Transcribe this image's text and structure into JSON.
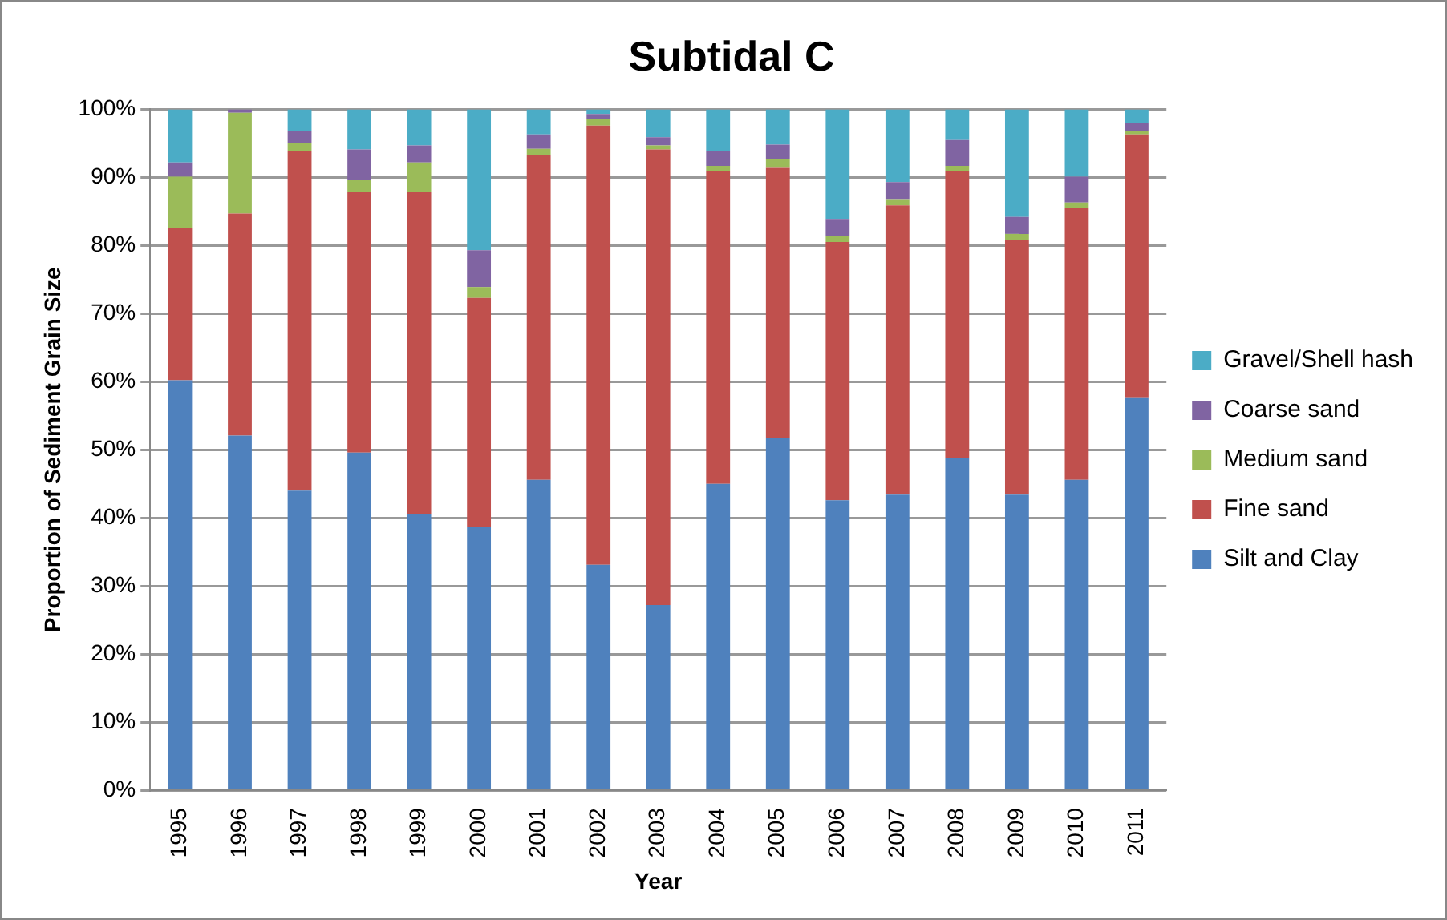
{
  "chart_data": {
    "type": "bar",
    "title": "Subtidal C",
    "xlabel": "Year",
    "ylabel": "Proportion of Sediment Grain Size",
    "categories": [
      "1995",
      "1996",
      "1997",
      "1998",
      "1999",
      "2000",
      "2001",
      "2002",
      "2003",
      "2004",
      "2005",
      "2006",
      "2007",
      "2008",
      "2009",
      "2010",
      "2011"
    ],
    "stacked": true,
    "grid": "y",
    "legend": "right",
    "ylim": [
      0,
      100
    ],
    "yticks": [
      {
        "value": 0,
        "label": "0%"
      },
      {
        "value": 10,
        "label": "10%"
      },
      {
        "value": 20,
        "label": "20%"
      },
      {
        "value": 30,
        "label": "30%"
      },
      {
        "value": 40,
        "label": "40%"
      },
      {
        "value": 50,
        "label": "50%"
      },
      {
        "value": 60,
        "label": "60%"
      },
      {
        "value": 70,
        "label": "70%"
      },
      {
        "value": 80,
        "label": "80%"
      },
      {
        "value": 90,
        "label": "90%"
      },
      {
        "value": 100,
        "label": "100%"
      }
    ],
    "series": [
      {
        "name": "Silt and Clay",
        "color": "#4f81bd",
        "values": [
          60.2,
          52.1,
          44.0,
          49.6,
          40.5,
          38.6,
          45.6,
          33.1,
          27.2,
          45.0,
          51.8,
          42.6,
          43.4,
          48.8,
          43.4,
          45.6,
          57.6
        ]
      },
      {
        "name": "Fine sand",
        "color": "#c0504d",
        "values": [
          22.3,
          32.6,
          49.9,
          38.3,
          47.4,
          33.7,
          47.7,
          64.5,
          66.9,
          45.9,
          39.6,
          37.9,
          42.5,
          42.1,
          37.4,
          39.9,
          38.7
        ]
      },
      {
        "name": "Medium sand",
        "color": "#9bbb59",
        "values": [
          7.6,
          14.8,
          1.2,
          1.7,
          4.3,
          1.6,
          0.9,
          1.0,
          0.6,
          0.8,
          1.3,
          0.9,
          0.9,
          0.8,
          0.9,
          0.8,
          0.5
        ]
      },
      {
        "name": "Coarse sand",
        "color": "#8064a2",
        "values": [
          2.1,
          0.5,
          1.7,
          4.5,
          2.5,
          5.4,
          2.1,
          0.7,
          1.2,
          2.2,
          2.1,
          2.5,
          2.5,
          3.8,
          2.5,
          3.8,
          1.2
        ]
      },
      {
        "name": "Gravel/Shell hash",
        "color": "#4bacc6",
        "values": [
          7.8,
          0.0,
          3.2,
          5.9,
          5.3,
          20.7,
          3.7,
          0.7,
          4.1,
          6.1,
          5.2,
          16.1,
          10.7,
          4.5,
          15.8,
          9.9,
          2.0
        ]
      }
    ]
  }
}
